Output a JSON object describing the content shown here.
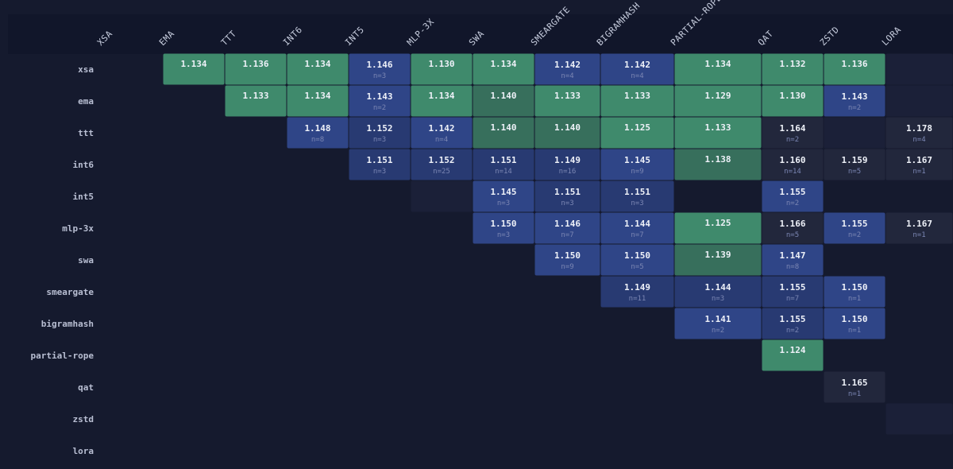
{
  "chart_data": {
    "type": "heatmap",
    "labels": [
      "xsa",
      "ema",
      "ttt",
      "int6",
      "int5",
      "mlp-3x",
      "swa",
      "smeargate",
      "bigramhash",
      "partial-rope",
      "qat",
      "zstd",
      "lora"
    ],
    "col_labels": [
      "XSA",
      "EMA",
      "TTT",
      "INT6",
      "INT5",
      "MLP-3X",
      "SWA",
      "SMEARGATE",
      "BIGRAMHASH",
      "PARTIAL-ROPE",
      "QAT",
      "ZSTD",
      "LORA"
    ],
    "cells": [
      {
        "row": "xsa",
        "col": "ema",
        "value": "1.134",
        "n": "",
        "tone": "green"
      },
      {
        "row": "xsa",
        "col": "ttt",
        "value": "1.136",
        "n": "",
        "tone": "green"
      },
      {
        "row": "xsa",
        "col": "int6",
        "value": "1.134",
        "n": "",
        "tone": "green"
      },
      {
        "row": "xsa",
        "col": "int5",
        "value": "1.146",
        "n": "n=3",
        "tone": "blue"
      },
      {
        "row": "xsa",
        "col": "mlp-3x",
        "value": "1.130",
        "n": "",
        "tone": "green"
      },
      {
        "row": "xsa",
        "col": "swa",
        "value": "1.134",
        "n": "",
        "tone": "green"
      },
      {
        "row": "xsa",
        "col": "smeargate",
        "value": "1.142",
        "n": "n=4",
        "tone": "blue"
      },
      {
        "row": "xsa",
        "col": "bigramhash",
        "value": "1.142",
        "n": "n=4",
        "tone": "blue"
      },
      {
        "row": "xsa",
        "col": "partial-rope",
        "value": "1.134",
        "n": "",
        "tone": "green"
      },
      {
        "row": "xsa",
        "col": "qat",
        "value": "1.132",
        "n": "",
        "tone": "green"
      },
      {
        "row": "xsa",
        "col": "zstd",
        "value": "1.136",
        "n": "",
        "tone": "green"
      },
      {
        "row": "xsa",
        "col": "lora",
        "value": "",
        "n": "",
        "tone": "empty"
      },
      {
        "row": "ema",
        "col": "ttt",
        "value": "1.133",
        "n": "",
        "tone": "green"
      },
      {
        "row": "ema",
        "col": "int6",
        "value": "1.134",
        "n": "",
        "tone": "green"
      },
      {
        "row": "ema",
        "col": "int5",
        "value": "1.143",
        "n": "n=2",
        "tone": "blue"
      },
      {
        "row": "ema",
        "col": "mlp-3x",
        "value": "1.134",
        "n": "",
        "tone": "green"
      },
      {
        "row": "ema",
        "col": "swa",
        "value": "1.140",
        "n": "",
        "tone": "greendim"
      },
      {
        "row": "ema",
        "col": "smeargate",
        "value": "1.133",
        "n": "",
        "tone": "green"
      },
      {
        "row": "ema",
        "col": "bigramhash",
        "value": "1.133",
        "n": "",
        "tone": "green"
      },
      {
        "row": "ema",
        "col": "partial-rope",
        "value": "1.129",
        "n": "",
        "tone": "green"
      },
      {
        "row": "ema",
        "col": "qat",
        "value": "1.130",
        "n": "",
        "tone": "green"
      },
      {
        "row": "ema",
        "col": "zstd",
        "value": "1.143",
        "n": "n=2",
        "tone": "blue"
      },
      {
        "row": "ema",
        "col": "lora",
        "value": "",
        "n": "",
        "tone": "empty"
      },
      {
        "row": "ttt",
        "col": "int6",
        "value": "1.148",
        "n": "n=8",
        "tone": "blue"
      },
      {
        "row": "ttt",
        "col": "int5",
        "value": "1.152",
        "n": "n=3",
        "tone": "bluedim"
      },
      {
        "row": "ttt",
        "col": "mlp-3x",
        "value": "1.142",
        "n": "n=4",
        "tone": "blue"
      },
      {
        "row": "ttt",
        "col": "swa",
        "value": "1.140",
        "n": "",
        "tone": "greendim"
      },
      {
        "row": "ttt",
        "col": "smeargate",
        "value": "1.140",
        "n": "",
        "tone": "greendim"
      },
      {
        "row": "ttt",
        "col": "bigramhash",
        "value": "1.125",
        "n": "",
        "tone": "green"
      },
      {
        "row": "ttt",
        "col": "partial-rope",
        "value": "1.133",
        "n": "",
        "tone": "green"
      },
      {
        "row": "ttt",
        "col": "qat",
        "value": "1.164",
        "n": "n=2",
        "tone": "gray"
      },
      {
        "row": "ttt",
        "col": "zstd",
        "value": "",
        "n": "",
        "tone": "empty"
      },
      {
        "row": "ttt",
        "col": "lora",
        "value": "1.178",
        "n": "n=4",
        "tone": "gray"
      },
      {
        "row": "int6",
        "col": "int5",
        "value": "1.151",
        "n": "n=3",
        "tone": "bluedim"
      },
      {
        "row": "int6",
        "col": "mlp-3x",
        "value": "1.152",
        "n": "n=25",
        "tone": "bluedim"
      },
      {
        "row": "int6",
        "col": "swa",
        "value": "1.151",
        "n": "n=14",
        "tone": "bluedim"
      },
      {
        "row": "int6",
        "col": "smeargate",
        "value": "1.149",
        "n": "n=16",
        "tone": "bluedim"
      },
      {
        "row": "int6",
        "col": "bigramhash",
        "value": "1.145",
        "n": "n=9",
        "tone": "blue"
      },
      {
        "row": "int6",
        "col": "partial-rope",
        "value": "1.138",
        "n": "",
        "tone": "greendim"
      },
      {
        "row": "int6",
        "col": "qat",
        "value": "1.160",
        "n": "n=14",
        "tone": "gray"
      },
      {
        "row": "int6",
        "col": "zstd",
        "value": "1.159",
        "n": "n=5",
        "tone": "gray"
      },
      {
        "row": "int6",
        "col": "lora",
        "value": "1.167",
        "n": "n=1",
        "tone": "gray"
      },
      {
        "row": "int5",
        "col": "mlp-3x",
        "value": "",
        "n": "",
        "tone": "empty"
      },
      {
        "row": "int5",
        "col": "swa",
        "value": "1.145",
        "n": "n=3",
        "tone": "blue"
      },
      {
        "row": "int5",
        "col": "smeargate",
        "value": "1.151",
        "n": "n=3",
        "tone": "bluedim"
      },
      {
        "row": "int5",
        "col": "bigramhash",
        "value": "1.151",
        "n": "n=3",
        "tone": "bluedim"
      },
      {
        "row": "int5",
        "col": "qat",
        "value": "1.155",
        "n": "n=2",
        "tone": "blue"
      },
      {
        "row": "mlp-3x",
        "col": "swa",
        "value": "1.150",
        "n": "n=3",
        "tone": "blue"
      },
      {
        "row": "mlp-3x",
        "col": "smeargate",
        "value": "1.146",
        "n": "n=7",
        "tone": "blue"
      },
      {
        "row": "mlp-3x",
        "col": "bigramhash",
        "value": "1.144",
        "n": "n=7",
        "tone": "blue"
      },
      {
        "row": "mlp-3x",
        "col": "partial-rope",
        "value": "1.125",
        "n": "",
        "tone": "green"
      },
      {
        "row": "mlp-3x",
        "col": "qat",
        "value": "1.166",
        "n": "n=5",
        "tone": "gray"
      },
      {
        "row": "mlp-3x",
        "col": "zstd",
        "value": "1.155",
        "n": "n=2",
        "tone": "blue"
      },
      {
        "row": "mlp-3x",
        "col": "lora",
        "value": "1.167",
        "n": "n=1",
        "tone": "gray"
      },
      {
        "row": "swa",
        "col": "smeargate",
        "value": "1.150",
        "n": "n=9",
        "tone": "blue"
      },
      {
        "row": "swa",
        "col": "bigramhash",
        "value": "1.150",
        "n": "n=5",
        "tone": "blue"
      },
      {
        "row": "swa",
        "col": "partial-rope",
        "value": "1.139",
        "n": "",
        "tone": "greendim"
      },
      {
        "row": "swa",
        "col": "qat",
        "value": "1.147",
        "n": "n=8",
        "tone": "blue"
      },
      {
        "row": "smeargate",
        "col": "bigramhash",
        "value": "1.149",
        "n": "n=11",
        "tone": "bluedim"
      },
      {
        "row": "smeargate",
        "col": "partial-rope",
        "value": "1.144",
        "n": "n=3",
        "tone": "bluedim"
      },
      {
        "row": "smeargate",
        "col": "qat",
        "value": "1.155",
        "n": "n=7",
        "tone": "bluedim"
      },
      {
        "row": "smeargate",
        "col": "zstd",
        "value": "1.150",
        "n": "n=1",
        "tone": "blue"
      },
      {
        "row": "bigramhash",
        "col": "partial-rope",
        "value": "1.141",
        "n": "n=2",
        "tone": "blue"
      },
      {
        "row": "bigramhash",
        "col": "qat",
        "value": "1.155",
        "n": "n=2",
        "tone": "bluedim"
      },
      {
        "row": "bigramhash",
        "col": "zstd",
        "value": "1.150",
        "n": "n=1",
        "tone": "blue"
      },
      {
        "row": "partial-rope",
        "col": "qat",
        "value": "1.124",
        "n": "",
        "tone": "green"
      },
      {
        "row": "qat",
        "col": "zstd",
        "value": "1.165",
        "n": "n=1",
        "tone": "gray"
      },
      {
        "row": "zstd",
        "col": "lora",
        "value": "",
        "n": "",
        "tone": "empty"
      }
    ],
    "colors": {
      "background": "#151a2e",
      "header_band": "#11162a",
      "green": "#3f8a6c",
      "greendim": "#376f5c",
      "blue": "#2f4587",
      "bluedim": "#283a72",
      "gray": "#22273c",
      "empty": "#1b2038",
      "value_text": "#eef1f8",
      "n_text": "#7b86b3",
      "label_text": "#c8cedf"
    }
  }
}
